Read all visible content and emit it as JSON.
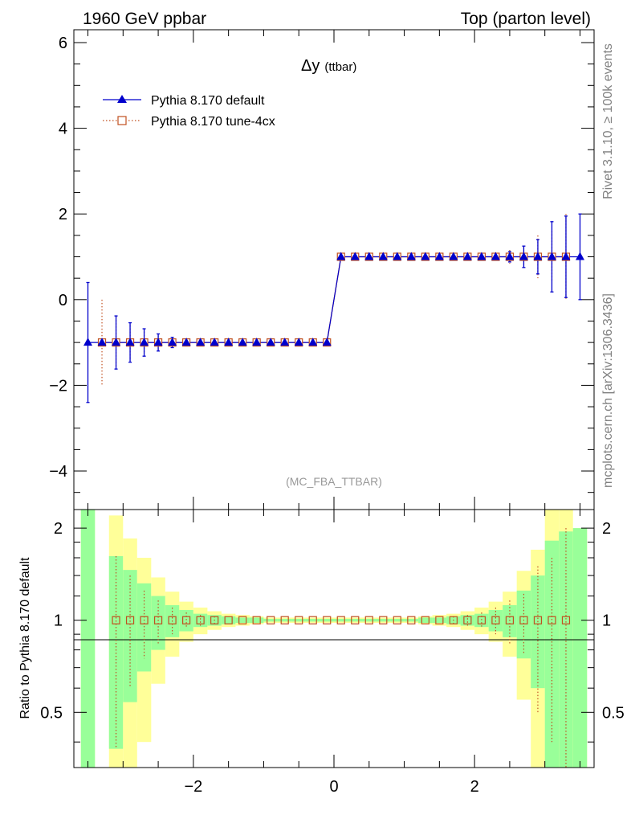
{
  "header": {
    "left_title": "1960 GeV ppbar",
    "right_title": "Top (parton level)"
  },
  "side_labels": {
    "rivet": "Rivet 3.1.10, ≥ 100k events",
    "source": "mcplots.cern.ch [arXiv:1306.3436]"
  },
  "colors": {
    "series1": "#0000cc",
    "series2": "#c05020",
    "band_inner": "#99ff99",
    "band_outer": "#ffff99"
  },
  "chart_data": [
    {
      "type": "line",
      "panel": "main",
      "title": "Δy",
      "title_suffix": "(ttbar)",
      "watermark": "(MC_FBA_TTBAR)",
      "xlim": [
        -3.7,
        3.7
      ],
      "ylim": [
        -4.9,
        6.3
      ],
      "yticks": [
        -4,
        -2,
        0,
        2,
        4,
        6
      ],
      "ytick_labels": [
        "−4",
        "−2",
        "0",
        "2",
        "4",
        "6"
      ],
      "x": [
        -3.5,
        -3.3,
        -3.1,
        -2.9,
        -2.7,
        -2.5,
        -2.3,
        -2.1,
        -1.9,
        -1.7,
        -1.5,
        -1.3,
        -1.1,
        -0.9,
        -0.7,
        -0.5,
        -0.3,
        -0.1,
        0.1,
        0.3,
        0.5,
        0.7,
        0.9,
        1.1,
        1.3,
        1.5,
        1.7,
        1.9,
        2.1,
        2.3,
        2.5,
        2.7,
        2.9,
        3.1,
        3.3,
        3.5
      ],
      "series": [
        {
          "name": "Pythia 8.170 default",
          "marker": "triangle",
          "values": [
            -1,
            -1,
            -1,
            -1,
            -1,
            -1,
            -1,
            -1,
            -1,
            -1,
            -1,
            -1,
            -1,
            -1,
            -1,
            -1,
            -1,
            -1,
            1,
            1,
            1,
            1,
            1,
            1,
            1,
            1,
            1,
            1,
            1,
            1,
            1,
            1,
            1,
            1,
            1,
            1
          ],
          "errors": [
            1.4,
            0,
            0.62,
            0.46,
            0.32,
            0.2,
            0.12,
            0.08,
            0.05,
            0.04,
            0.03,
            0.02,
            0.02,
            0.01,
            0.01,
            0.01,
            0.01,
            0.01,
            0.01,
            0.01,
            0.01,
            0.01,
            0.01,
            0.01,
            0.02,
            0.02,
            0.03,
            0.04,
            0.05,
            0.08,
            0.12,
            0.25,
            0.4,
            0.82,
            0.95,
            1.0
          ]
        },
        {
          "name": "Pythia 8.170 tune-4cx",
          "marker": "open-square",
          "values": [
            null,
            -1,
            -1,
            -1,
            -1,
            -1,
            -1,
            -1,
            -1,
            -1,
            -1,
            -1,
            -1,
            -1,
            -1,
            -1,
            -1,
            -1,
            1,
            1,
            1,
            1,
            1,
            1,
            1,
            1,
            1,
            1,
            1,
            1,
            1,
            1,
            1,
            1,
            1,
            null
          ],
          "errors": [
            0,
            1.0,
            0.6,
            0.4,
            0.25,
            0.16,
            0.1,
            0.06,
            0.04,
            0.03,
            0.02,
            0.02,
            0.01,
            0.01,
            0.01,
            0.01,
            0.01,
            0.01,
            0.01,
            0.01,
            0.01,
            0.01,
            0.01,
            0.01,
            0.01,
            0.02,
            0.03,
            0.04,
            0.06,
            0.1,
            0.16,
            0.22,
            0.5,
            0.6,
            1.0,
            0
          ]
        }
      ]
    },
    {
      "type": "line",
      "panel": "ratio",
      "ylabel": "Ratio to Pythia 8.170 default",
      "ylim": [
        0.33,
        2.3
      ],
      "log_scale": true,
      "yticks": [
        0.5,
        1,
        2
      ],
      "ytick_labels": [
        "0.5",
        "1",
        "2"
      ],
      "xlim": [
        -3.7,
        3.7
      ],
      "xticks": [
        -2,
        0,
        2
      ],
      "xtick_labels": [
        "−2",
        "0",
        "2"
      ],
      "x": [
        -3.5,
        -3.3,
        -3.1,
        -2.9,
        -2.7,
        -2.5,
        -2.3,
        -2.1,
        -1.9,
        -1.7,
        -1.5,
        -1.3,
        -1.1,
        -0.9,
        -0.7,
        -0.5,
        -0.3,
        -0.1,
        0.1,
        0.3,
        0.5,
        0.7,
        0.9,
        1.1,
        1.3,
        1.5,
        1.7,
        1.9,
        2.1,
        2.3,
        2.5,
        2.7,
        2.9,
        3.1,
        3.3,
        3.5
      ],
      "band_inner_halfwidth": [
        1.5,
        0,
        0.62,
        0.46,
        0.32,
        0.2,
        0.12,
        0.08,
        0.05,
        0.04,
        0.03,
        0.02,
        0.02,
        0.01,
        0.01,
        0.01,
        0.01,
        0.01,
        0.01,
        0.01,
        0.01,
        0.01,
        0.01,
        0.01,
        0.02,
        0.02,
        0.03,
        0.04,
        0.05,
        0.08,
        0.12,
        0.25,
        0.4,
        0.82,
        0.95,
        1.0
      ],
      "band_outer_halfwidth": [
        1.5,
        0,
        1.2,
        0.85,
        0.6,
        0.38,
        0.24,
        0.15,
        0.1,
        0.07,
        0.05,
        0.04,
        0.03,
        0.02,
        0.02,
        0.02,
        0.02,
        0.02,
        0.02,
        0.02,
        0.02,
        0.02,
        0.02,
        0.02,
        0.03,
        0.04,
        0.05,
        0.07,
        0.1,
        0.15,
        0.24,
        0.45,
        0.7,
        1.6,
        1.6,
        1.0
      ],
      "series": [
        {
          "name": "Pythia 8.170 tune-4cx",
          "values": [
            null,
            null,
            1,
            1,
            1,
            1,
            1,
            1,
            1,
            1,
            1,
            1,
            1,
            1,
            1,
            1,
            1,
            1,
            1,
            1,
            1,
            1,
            1,
            1,
            1,
            1,
            1,
            1,
            1,
            1,
            1,
            1,
            1,
            1,
            1,
            null
          ],
          "errors": [
            0,
            0,
            0.62,
            0.4,
            0.25,
            0.16,
            0.1,
            0.06,
            0.04,
            0.03,
            0.02,
            0.02,
            0.01,
            0.01,
            0.01,
            0.01,
            0.01,
            0.01,
            0.01,
            0.01,
            0.01,
            0.01,
            0.01,
            0.01,
            0.01,
            0.02,
            0.03,
            0.04,
            0.06,
            0.1,
            0.16,
            0.22,
            0.5,
            0.6,
            1.0,
            0
          ]
        }
      ]
    }
  ]
}
